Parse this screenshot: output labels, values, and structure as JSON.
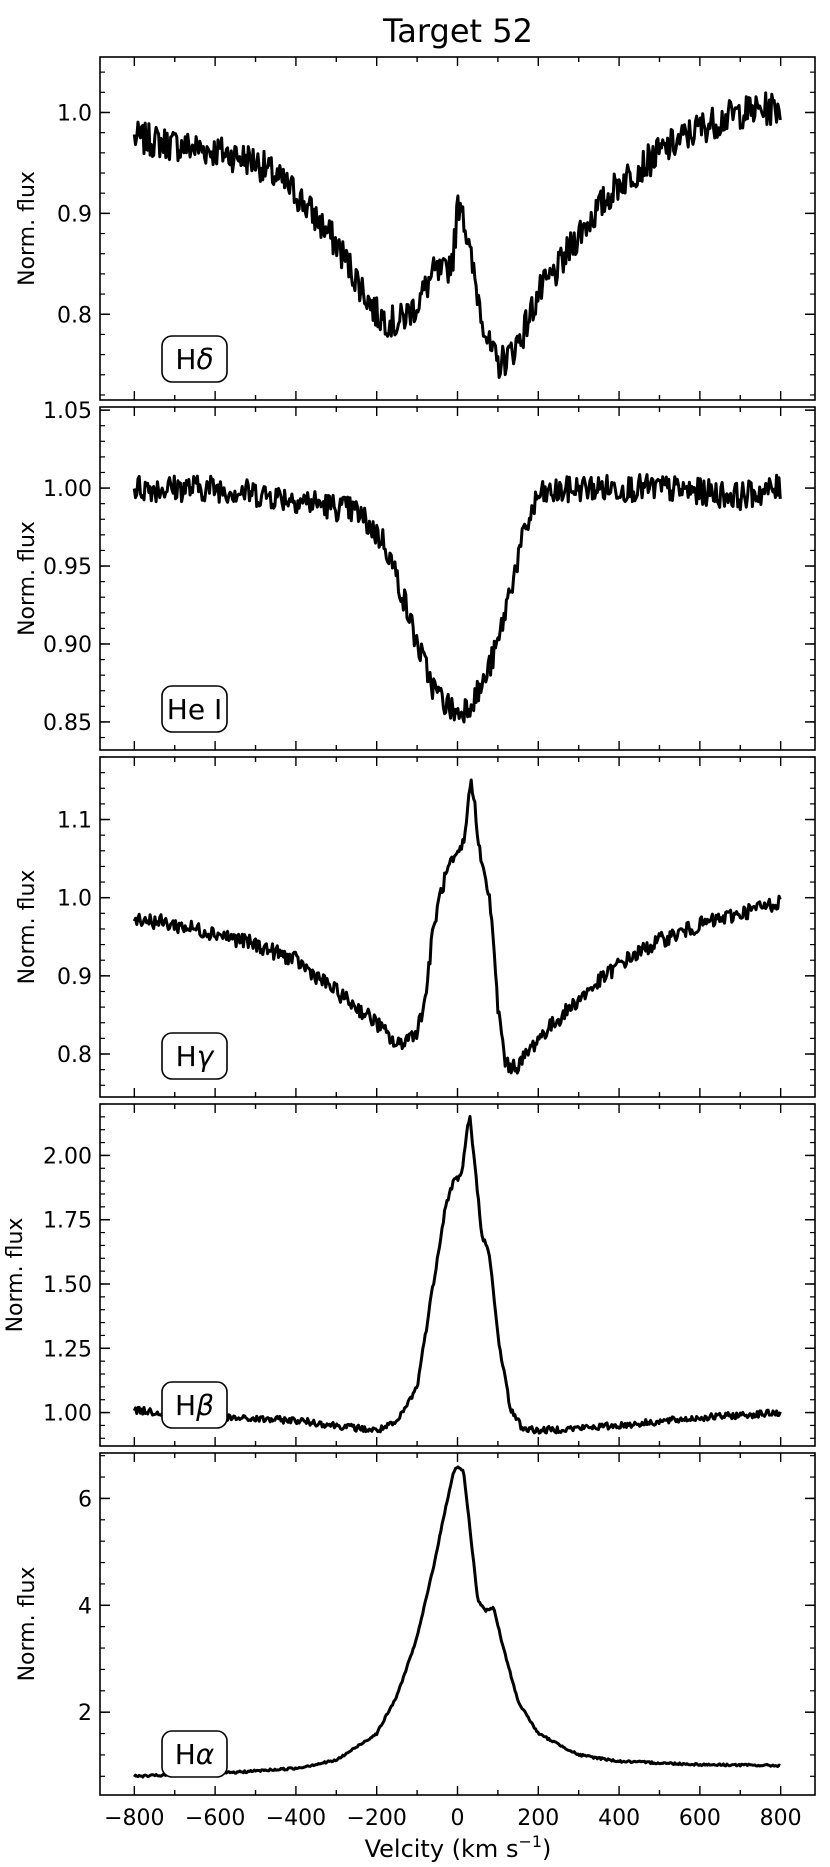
{
  "figure": {
    "title": "Target 52",
    "xlabel": "Velcity (km s⁻¹)",
    "xlabel_main": "Velcity (km s",
    "xlabel_exp": "−1",
    "xlabel_close": ")",
    "line_color": "#000000"
  },
  "chart_data": [
    {
      "type": "line",
      "label": "Hδ",
      "label_main": "H",
      "label_greek": "δ",
      "ylabel": "Norm. flux",
      "xlim": [
        -885,
        885
      ],
      "ylim": [
        0.715,
        1.055
      ],
      "yticks": [
        0.8,
        0.9,
        1.0
      ],
      "ytick_labels": [
        "0.8",
        "0.9",
        "1.0"
      ],
      "noise": 0.015,
      "x": [
        -800,
        -700,
        -600,
        -500,
        -400,
        -300,
        -250,
        -200,
        -150,
        -100,
        -60,
        -30,
        -10,
        0,
        10,
        20,
        30,
        50,
        80,
        100,
        130,
        160,
        200,
        250,
        300,
        400,
        500,
        600,
        700,
        800
      ],
      "y": [
        0.975,
        0.968,
        0.962,
        0.952,
        0.92,
        0.87,
        0.835,
        0.8,
        0.79,
        0.81,
        0.84,
        0.84,
        0.86,
        0.905,
        0.915,
        0.885,
        0.86,
        0.82,
        0.765,
        0.75,
        0.76,
        0.78,
        0.82,
        0.845,
        0.88,
        0.93,
        0.96,
        0.985,
        1.0,
        1.005
      ]
    },
    {
      "type": "line",
      "label": "He I",
      "label_main": "He I",
      "label_greek": "",
      "ylabel": "Norm. flux",
      "xlim": [
        -885,
        885
      ],
      "ylim": [
        0.832,
        1.052
      ],
      "yticks": [
        0.85,
        0.9,
        0.95,
        1.0,
        1.05
      ],
      "ytick_labels": [
        "0.85",
        "0.90",
        "0.95",
        "1.00",
        "1.05"
      ],
      "noise": 0.008,
      "x": [
        -800,
        -600,
        -400,
        -250,
        -180,
        -140,
        -100,
        -60,
        -30,
        0,
        30,
        60,
        100,
        130,
        170,
        200,
        300,
        500,
        700,
        800
      ],
      "y": [
        1.0,
        1.0,
        0.993,
        0.985,
        0.965,
        0.935,
        0.9,
        0.872,
        0.862,
        0.855,
        0.862,
        0.872,
        0.9,
        0.935,
        0.975,
        0.995,
        1.0,
        1.0,
        0.995,
        1.0
      ]
    },
    {
      "type": "line",
      "label": "Hγ",
      "label_main": "H",
      "label_greek": "γ",
      "ylabel": "Norm. flux",
      "xlim": [
        -885,
        885
      ],
      "ylim": [
        0.745,
        1.18
      ],
      "yticks": [
        0.8,
        0.9,
        1.0,
        1.1
      ],
      "ytick_labels": [
        "0.8",
        "0.9",
        "1.0",
        "1.1"
      ],
      "noise": 0.009,
      "x": [
        -800,
        -700,
        -600,
        -500,
        -400,
        -300,
        -200,
        -150,
        -100,
        -80,
        -60,
        -40,
        -20,
        0,
        20,
        30,
        40,
        60,
        80,
        100,
        120,
        150,
        200,
        300,
        400,
        500,
        600,
        700,
        800
      ],
      "y": [
        0.975,
        0.965,
        0.955,
        0.94,
        0.92,
        0.88,
        0.84,
        0.81,
        0.83,
        0.87,
        0.96,
        1.01,
        1.04,
        1.05,
        1.08,
        1.15,
        1.13,
        1.04,
        1.0,
        0.86,
        0.785,
        0.785,
        0.82,
        0.87,
        0.915,
        0.945,
        0.965,
        0.98,
        0.995
      ]
    },
    {
      "type": "line",
      "label": "Hβ",
      "label_main": "H",
      "label_greek": "β",
      "ylabel": "Norm. flux",
      "xlim": [
        -885,
        885
      ],
      "ylim": [
        0.87,
        2.2
      ],
      "yticks": [
        1.0,
        1.25,
        1.5,
        1.75,
        2.0
      ],
      "ytick_labels": [
        "1.00",
        "1.25",
        "1.50",
        "1.75",
        "2.00"
      ],
      "noise": 0.012,
      "x": [
        -800,
        -600,
        -400,
        -200,
        -150,
        -100,
        -60,
        -30,
        -10,
        0,
        10,
        20,
        30,
        40,
        60,
        80,
        100,
        130,
        160,
        200,
        400,
        600,
        800
      ],
      "y": [
        1.01,
        0.98,
        0.97,
        0.93,
        0.96,
        1.1,
        1.5,
        1.8,
        1.9,
        1.91,
        1.93,
        2.05,
        2.16,
        2.0,
        1.7,
        1.6,
        1.3,
        1.02,
        0.94,
        0.93,
        0.95,
        0.98,
        1.0
      ]
    },
    {
      "type": "line",
      "label": "Hα",
      "label_main": "H",
      "label_greek": "α",
      "ylabel": "Norm. flux",
      "xlim": [
        -885,
        885
      ],
      "ylim": [
        0.45,
        6.85
      ],
      "yticks": [
        2,
        4,
        6
      ],
      "ytick_labels": [
        "2",
        "4",
        "6"
      ],
      "noise": 0.018,
      "x": [
        -800,
        -600,
        -400,
        -300,
        -200,
        -150,
        -100,
        -60,
        -30,
        -10,
        0,
        15,
        30,
        50,
        70,
        90,
        110,
        150,
        200,
        300,
        400,
        600,
        800
      ],
      "y": [
        0.8,
        0.85,
        0.95,
        1.1,
        1.6,
        2.3,
        3.4,
        4.7,
        5.8,
        6.5,
        6.6,
        6.5,
        5.5,
        4.1,
        3.9,
        3.95,
        3.3,
        2.2,
        1.6,
        1.2,
        1.08,
        1.02,
        1.0
      ]
    }
  ],
  "xaxis": {
    "ticks": [
      -800,
      -600,
      -400,
      -200,
      0,
      200,
      400,
      600,
      800
    ],
    "tick_labels": [
      "−800",
      "−600",
      "−400",
      "−200",
      "0",
      "200",
      "400",
      "600",
      "800"
    ]
  }
}
